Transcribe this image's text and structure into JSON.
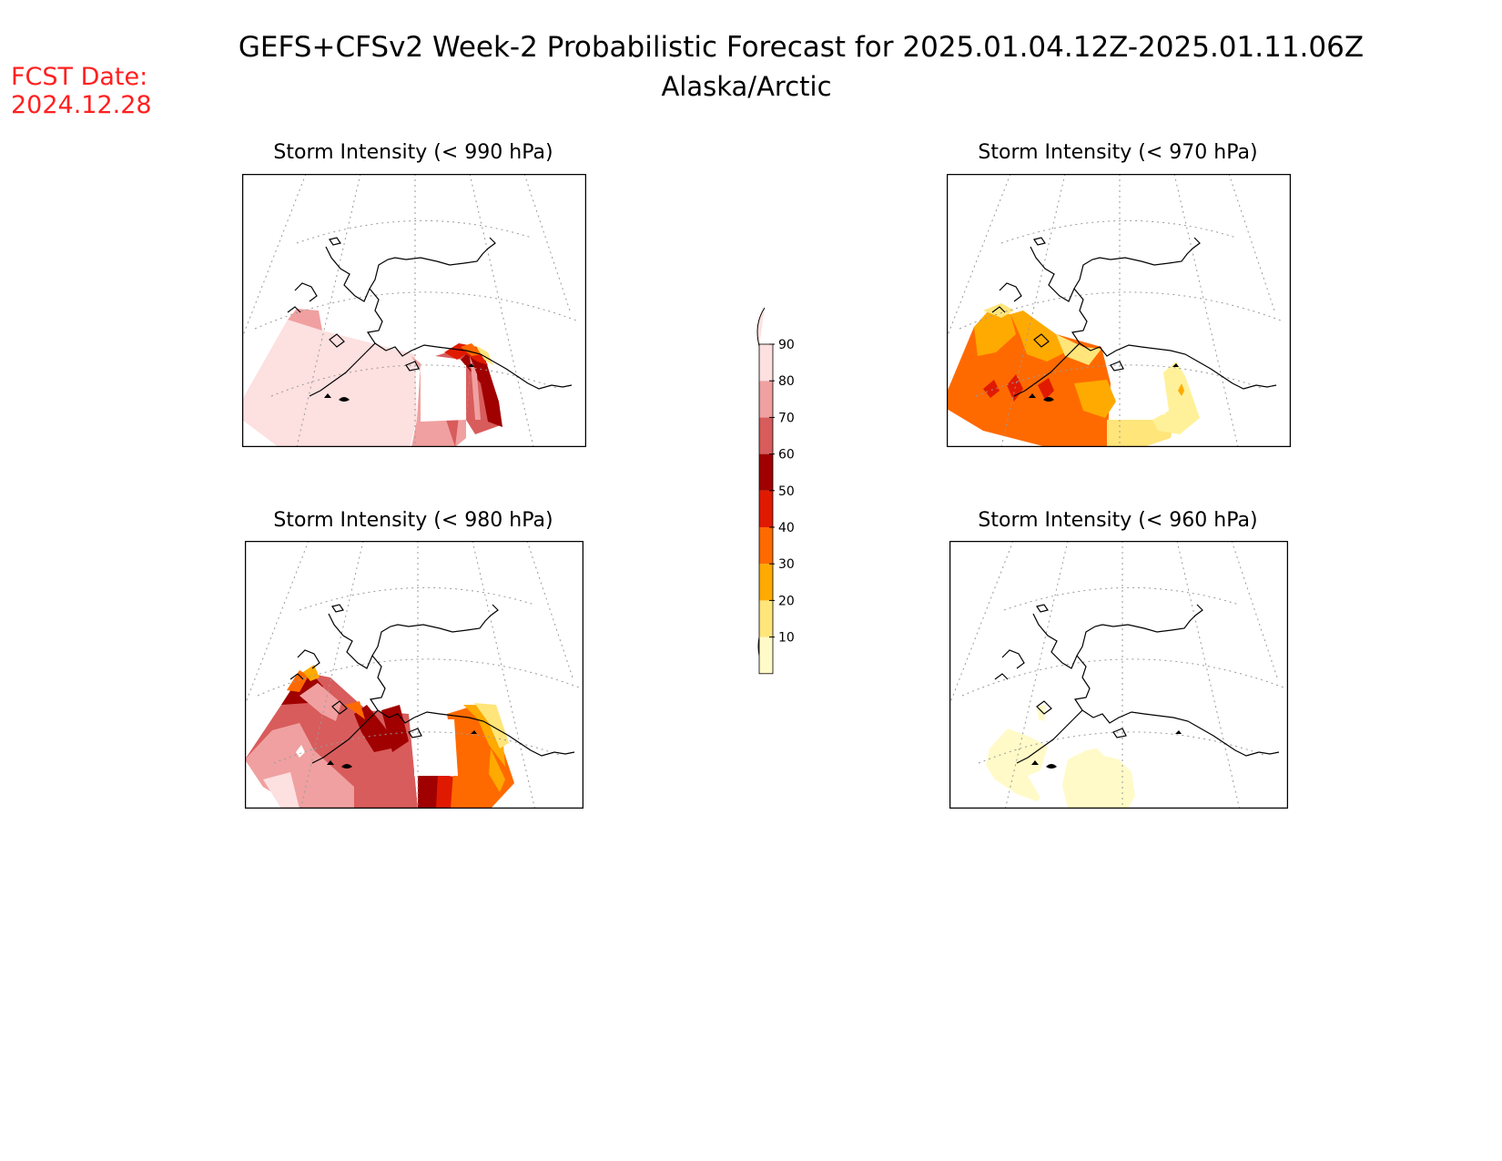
{
  "header": {
    "title": "GEFS+CFSv2 Week-2 Probabilistic Forecast for 2025.01.04.12Z-2025.01.11.06Z",
    "subtitle": "Alaska/Arctic",
    "fcst_label": "FCST Date:",
    "fcst_date": "2024.12.28",
    "fcst_color": "#ff2020"
  },
  "panels": [
    {
      "id": "p990",
      "title": "Storm Intensity (< 990 hPa)"
    },
    {
      "id": "p970",
      "title": "Storm Intensity (< 970 hPa)"
    },
    {
      "id": "p980",
      "title": "Storm Intensity (< 980 hPa)"
    },
    {
      "id": "p960",
      "title": "Storm Intensity (< 960 hPa)"
    }
  ],
  "colorbar": {
    "labels": [
      "10",
      "20",
      "30",
      "40",
      "50",
      "60",
      "70",
      "80",
      "90"
    ],
    "colors": [
      "#fffac8",
      "#ffe57a",
      "#ffaa00",
      "#ff6a00",
      "#e01a00",
      "#a00000",
      "#d85c5c",
      "#f0a0a0",
      "#fde0e0"
    ]
  }
}
